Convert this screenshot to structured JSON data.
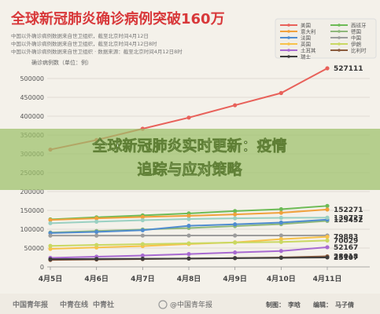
{
  "header": {
    "title": "全球新冠肺炎确诊病例突破160万",
    "notes": [
      "中国以外确诊病例数据来自世卫组织，截至北京时间4月12日",
      "中国以外确诊病例数据来自世卫组织，截至北京时间4月12日8时",
      "中国以外确诊病例数据来自世卫组织 · 数据来源：截至北京时间4月12日8时"
    ]
  },
  "overlay": {
    "line1": "全球新冠肺炎实时更新：疫情",
    "line2": "追踪与应对策略"
  },
  "footer": {
    "logo1": "中国青年报",
    "logo2": "中青在线",
    "logo3": "中青社",
    "weibo": "@中国青年报",
    "maker_label": "制图：",
    "maker": "李晗",
    "editor_label": "编辑：",
    "editor": "马子倩"
  },
  "colors": {
    "background": "#f4f1ea",
    "grid": "#d9d5cc",
    "axis_text": "#555555",
    "overlay_band": "#9cc06a",
    "overlay_text": "#ffffff"
  },
  "chart_data": {
    "type": "line",
    "title": "全球新冠肺炎确诊病例突破160万",
    "ylabel": "确诊病例数（单位：例）",
    "xlabel": "",
    "categories": [
      "4月5日",
      "4月6日",
      "4月7日",
      "4月8日",
      "4月9日",
      "4月10日",
      "4月11日"
    ],
    "ylim": [
      0,
      500000
    ],
    "yticks": [
      0,
      50000,
      100000,
      150000,
      200000,
      250000,
      300000,
      350000,
      400000,
      450000,
      500000
    ],
    "grid": true,
    "legend_position": "top-right",
    "series": [
      {
        "name": "美国",
        "color": "#e8615a",
        "values": [
          311357,
          336673,
          366614,
          396223,
          429052,
          461437,
          527111
        ],
        "end_label": "527111"
      },
      {
        "name": "西班牙",
        "color": "#6dbb56",
        "values": [
          126168,
          131646,
          136675,
          141942,
          148220,
          153222,
          161852
        ],
        "end_label": ""
      },
      {
        "name": "意大利",
        "color": "#f1a13c",
        "values": [
          124632,
          128948,
          132547,
          135586,
          139422,
          143626,
          152271
        ],
        "end_label": "152271"
      },
      {
        "name": "德国",
        "color": "#8fb87a",
        "values": [
          91159,
          95391,
          99225,
          103228,
          108202,
          113525,
          122171
        ],
        "end_label": ""
      },
      {
        "name": "法国",
        "color": "#4f8ccf",
        "values": [
          89953,
          92839,
          97301,
          109069,
          112950,
          117749,
          125452
        ],
        "end_label": "125452"
      },
      {
        "name": "中国",
        "color": "#9c9c9c",
        "values": [
          83005,
          83071,
          83157,
          83249,
          83305,
          83369,
          83482
        ],
        "end_label": ""
      },
      {
        "name": "英国",
        "color": "#f7c24a",
        "values": [
          47806,
          51608,
          55242,
          60733,
          65077,
          73758,
          79883
        ],
        "end_label": "79883"
      },
      {
        "name": "伊朗",
        "color": "#c9d862",
        "values": [
          55743,
          58226,
          60500,
          62589,
          64586,
          66220,
          70029
        ],
        "end_label": "70029"
      },
      {
        "name": "土耳其",
        "color": "#a86ad1",
        "values": [
          23934,
          27069,
          30217,
          34109,
          38226,
          42282,
          52167
        ],
        "end_label": "52167"
      },
      {
        "name": "比利时",
        "color": "#8a5a3c",
        "values": [
          18431,
          19691,
          20814,
          22194,
          23403,
          24983,
          28018
        ],
        "end_label": "28018"
      },
      {
        "name": "瑞士",
        "color": "#3d3d3d",
        "values": [
          20489,
          21104,
          21657,
          22253,
          23280,
          24051,
          25107
        ],
        "end_label": "25107"
      },
      {
        "name": "",
        "color": "#9ad0c2",
        "values": [
          116000,
          120000,
          124000,
          127000,
          129000,
          130200,
          130727
        ],
        "end_label": "130727"
      }
    ],
    "annotations": [
      "527111",
      "152271",
      "130727",
      "125452",
      "79883",
      "70029",
      "52167",
      "28018",
      "25107"
    ]
  }
}
